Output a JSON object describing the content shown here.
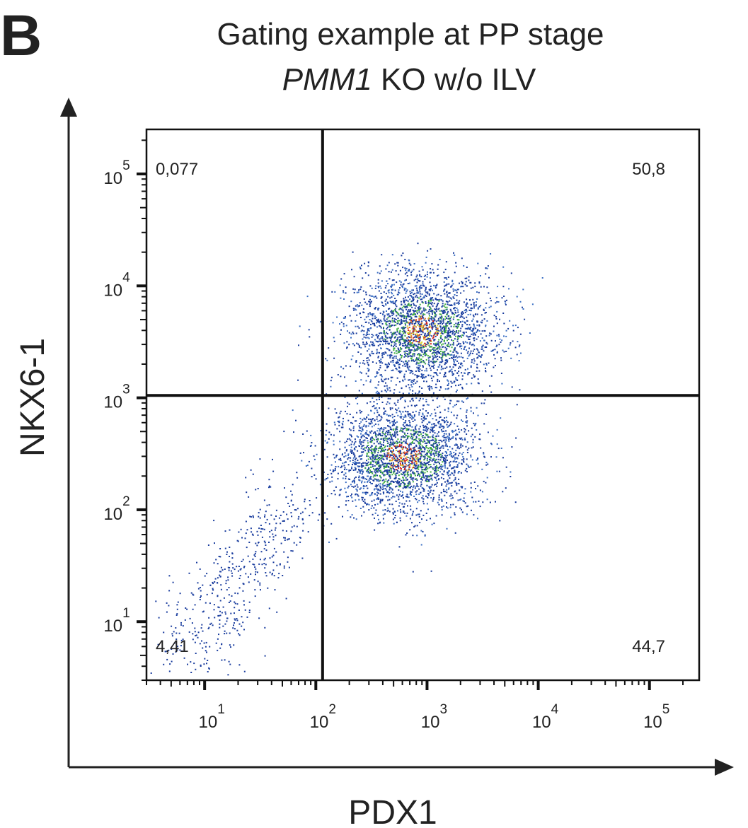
{
  "panel_label": "B",
  "chart_data": {
    "type": "scatter",
    "title": "Gating example at PP stage",
    "subtitle_italic": "PMM1",
    "subtitle_rest": " KO w/o ILV",
    "xlabel": "PDX1",
    "ylabel": "NKX6-1",
    "x_scale": "log",
    "y_scale": "log",
    "xlim": [
      3,
      280000
    ],
    "ylim": [
      3,
      250000
    ],
    "x_ticks": [
      {
        "base": "10",
        "exp": "1",
        "value": 10
      },
      {
        "base": "10",
        "exp": "2",
        "value": 100
      },
      {
        "base": "10",
        "exp": "3",
        "value": 1000
      },
      {
        "base": "10",
        "exp": "4",
        "value": 10000
      },
      {
        "base": "10",
        "exp": "5",
        "value": 100000
      }
    ],
    "y_ticks": [
      {
        "base": "10",
        "exp": "1",
        "value": 10
      },
      {
        "base": "10",
        "exp": "2",
        "value": 100
      },
      {
        "base": "10",
        "exp": "3",
        "value": 1000
      },
      {
        "base": "10",
        "exp": "4",
        "value": 10000
      },
      {
        "base": "10",
        "exp": "5",
        "value": 100000
      }
    ],
    "gates": {
      "x": 115,
      "y": 1050
    },
    "quadrants": {
      "upper_left": "0,077",
      "upper_right": "50,8",
      "lower_left": "4,41",
      "lower_right": "44,7"
    },
    "populations": [
      {
        "name_hidden": true,
        "center": [
          900,
          4000
        ],
        "count": 2600
      },
      {
        "name_hidden": true,
        "center": [
          600,
          300
        ],
        "count": 2600
      },
      {
        "name_hidden": true,
        "center": [
          60,
          120
        ],
        "count": 500
      }
    ],
    "density_colors": [
      "#1a3d9e",
      "#3b6fc4",
      "#3fae3f",
      "#d8d830",
      "#e07020",
      "#d02020"
    ],
    "grid": false,
    "legend": "none"
  }
}
